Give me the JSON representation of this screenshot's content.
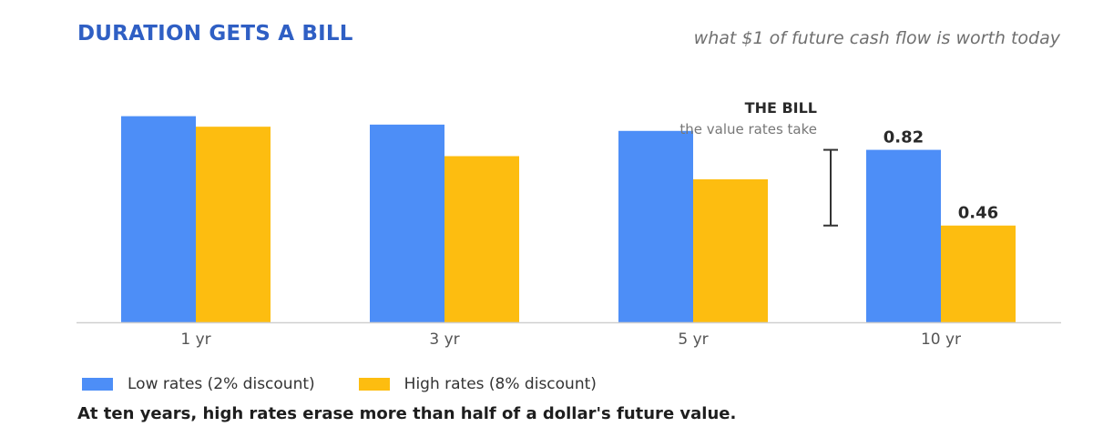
{
  "chart_data": {
    "type": "bar",
    "title": "DURATION GETS A BILL",
    "subtitle": "what $1 of future cash flow is worth today",
    "categories": [
      "1 yr",
      "3 yr",
      "5 yr",
      "10 yr"
    ],
    "series": [
      {
        "name": "Low rates (2% discount)",
        "color": "#4d8ef7",
        "values": [
          0.98,
          0.94,
          0.91,
          0.82
        ]
      },
      {
        "name": "High rates (8% discount)",
        "color": "#fdbd10",
        "values": [
          0.93,
          0.79,
          0.68,
          0.46
        ]
      }
    ],
    "ylim": [
      0,
      1
    ],
    "grid": false,
    "data_labels": [
      {
        "category_index": 3,
        "series_index": 0,
        "text": "0.82"
      },
      {
        "category_index": 3,
        "series_index": 1,
        "text": "0.46"
      }
    ],
    "annotation": {
      "title": "THE BILL",
      "subtitle": "the value rates take",
      "from_value": 0.82,
      "to_value": 0.46
    },
    "legend_position": "bottom-left",
    "caption": "At ten years, high rates erase more than half of a dollar's future value."
  }
}
